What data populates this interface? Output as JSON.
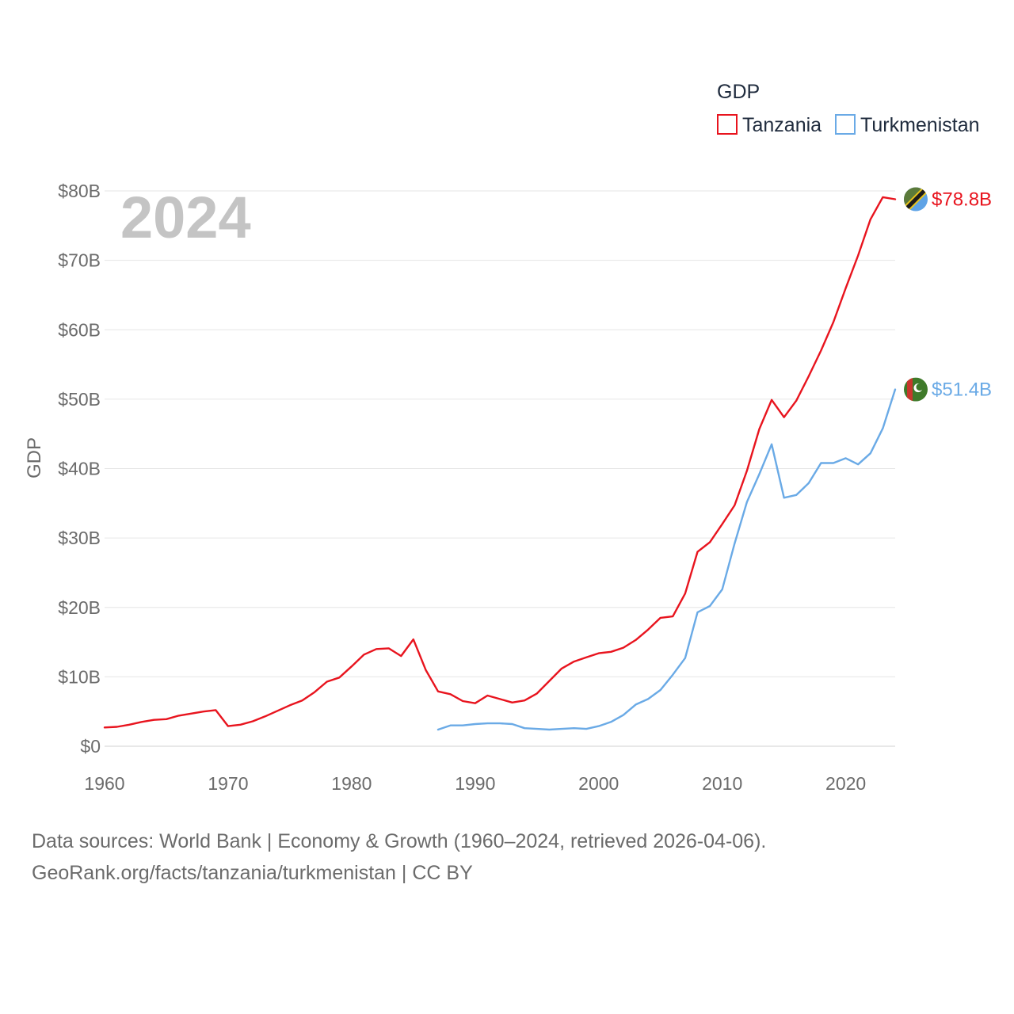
{
  "chart_data": {
    "type": "line",
    "title": "",
    "year_label": "2024",
    "xlabel": "",
    "ylabel": "GDP",
    "legend_title": "GDP",
    "legend_position": "top-right",
    "xlim": [
      1960,
      2024
    ],
    "ylim": [
      0,
      80
    ],
    "x_ticks": [
      1960,
      1970,
      1980,
      1990,
      2000,
      2010,
      2020
    ],
    "y_ticks": [
      0,
      10,
      20,
      30,
      40,
      50,
      60,
      70,
      80
    ],
    "y_tick_labels": [
      "$0",
      "$10B",
      "$20B",
      "$30B",
      "$40B",
      "$50B",
      "$60B",
      "$70B",
      "$80B"
    ],
    "grid": true,
    "series": [
      {
        "name": "Tanzania",
        "color": "#e8141e",
        "end_label": "$78.8B",
        "end_value": 78.8,
        "flag": "tanzania-flag-icon",
        "x": [
          1960,
          1961,
          1962,
          1963,
          1964,
          1965,
          1966,
          1967,
          1968,
          1969,
          1970,
          1971,
          1972,
          1973,
          1974,
          1975,
          1976,
          1977,
          1978,
          1979,
          1980,
          1981,
          1982,
          1983,
          1984,
          1985,
          1986,
          1987,
          1988,
          1989,
          1990,
          1991,
          1992,
          1993,
          1994,
          1995,
          1996,
          1997,
          1998,
          1999,
          2000,
          2001,
          2002,
          2003,
          2004,
          2005,
          2006,
          2007,
          2008,
          2009,
          2010,
          2011,
          2012,
          2013,
          2014,
          2015,
          2016,
          2017,
          2018,
          2019,
          2020,
          2021,
          2022,
          2023,
          2024
        ],
        "values": [
          2.7,
          2.8,
          3.1,
          3.5,
          3.8,
          3.9,
          4.4,
          4.7,
          5.0,
          5.2,
          2.9,
          3.1,
          3.6,
          4.3,
          5.1,
          5.9,
          6.6,
          7.8,
          9.3,
          9.9,
          11.5,
          13.2,
          14.0,
          14.1,
          13.0,
          15.4,
          11.0,
          7.9,
          7.5,
          6.5,
          6.2,
          7.3,
          6.8,
          6.3,
          6.6,
          7.6,
          9.4,
          11.2,
          12.2,
          12.8,
          13.4,
          13.6,
          14.2,
          15.3,
          16.8,
          18.5,
          18.7,
          22.0,
          28.0,
          29.4,
          32.0,
          34.7,
          39.7,
          45.7,
          49.9,
          47.4,
          49.8,
          53.3,
          57.0,
          61.1,
          66.0,
          70.7,
          75.9,
          79.1,
          78.8
        ]
      },
      {
        "name": "Turkmenistan",
        "color": "#6aaae6",
        "end_label": "$51.4B",
        "end_value": 51.4,
        "flag": "turkmenistan-flag-icon",
        "x": [
          1987,
          1988,
          1989,
          1990,
          1991,
          1992,
          1993,
          1994,
          1995,
          1996,
          1997,
          1998,
          1999,
          2000,
          2001,
          2002,
          2003,
          2004,
          2005,
          2006,
          2007,
          2008,
          2009,
          2010,
          2011,
          2012,
          2013,
          2014,
          2015,
          2016,
          2017,
          2018,
          2019,
          2020,
          2021,
          2022,
          2023,
          2024
        ],
        "values": [
          2.4,
          3.0,
          3.0,
          3.2,
          3.3,
          3.3,
          3.2,
          2.6,
          2.5,
          2.4,
          2.5,
          2.6,
          2.5,
          2.9,
          3.5,
          4.5,
          6.0,
          6.8,
          8.1,
          10.3,
          12.7,
          19.3,
          20.2,
          22.6,
          29.2,
          35.2,
          39.2,
          43.5,
          35.8,
          36.2,
          37.9,
          40.8,
          40.8,
          41.5,
          40.6,
          42.2,
          45.8,
          51.4
        ]
      }
    ]
  },
  "footer": {
    "line1": "Data sources: World Bank | Economy & Growth (1960–2024, retrieved 2026-04-06).",
    "line2": "GeoRank.org/facts/tanzania/turkmenistan | CC BY"
  }
}
